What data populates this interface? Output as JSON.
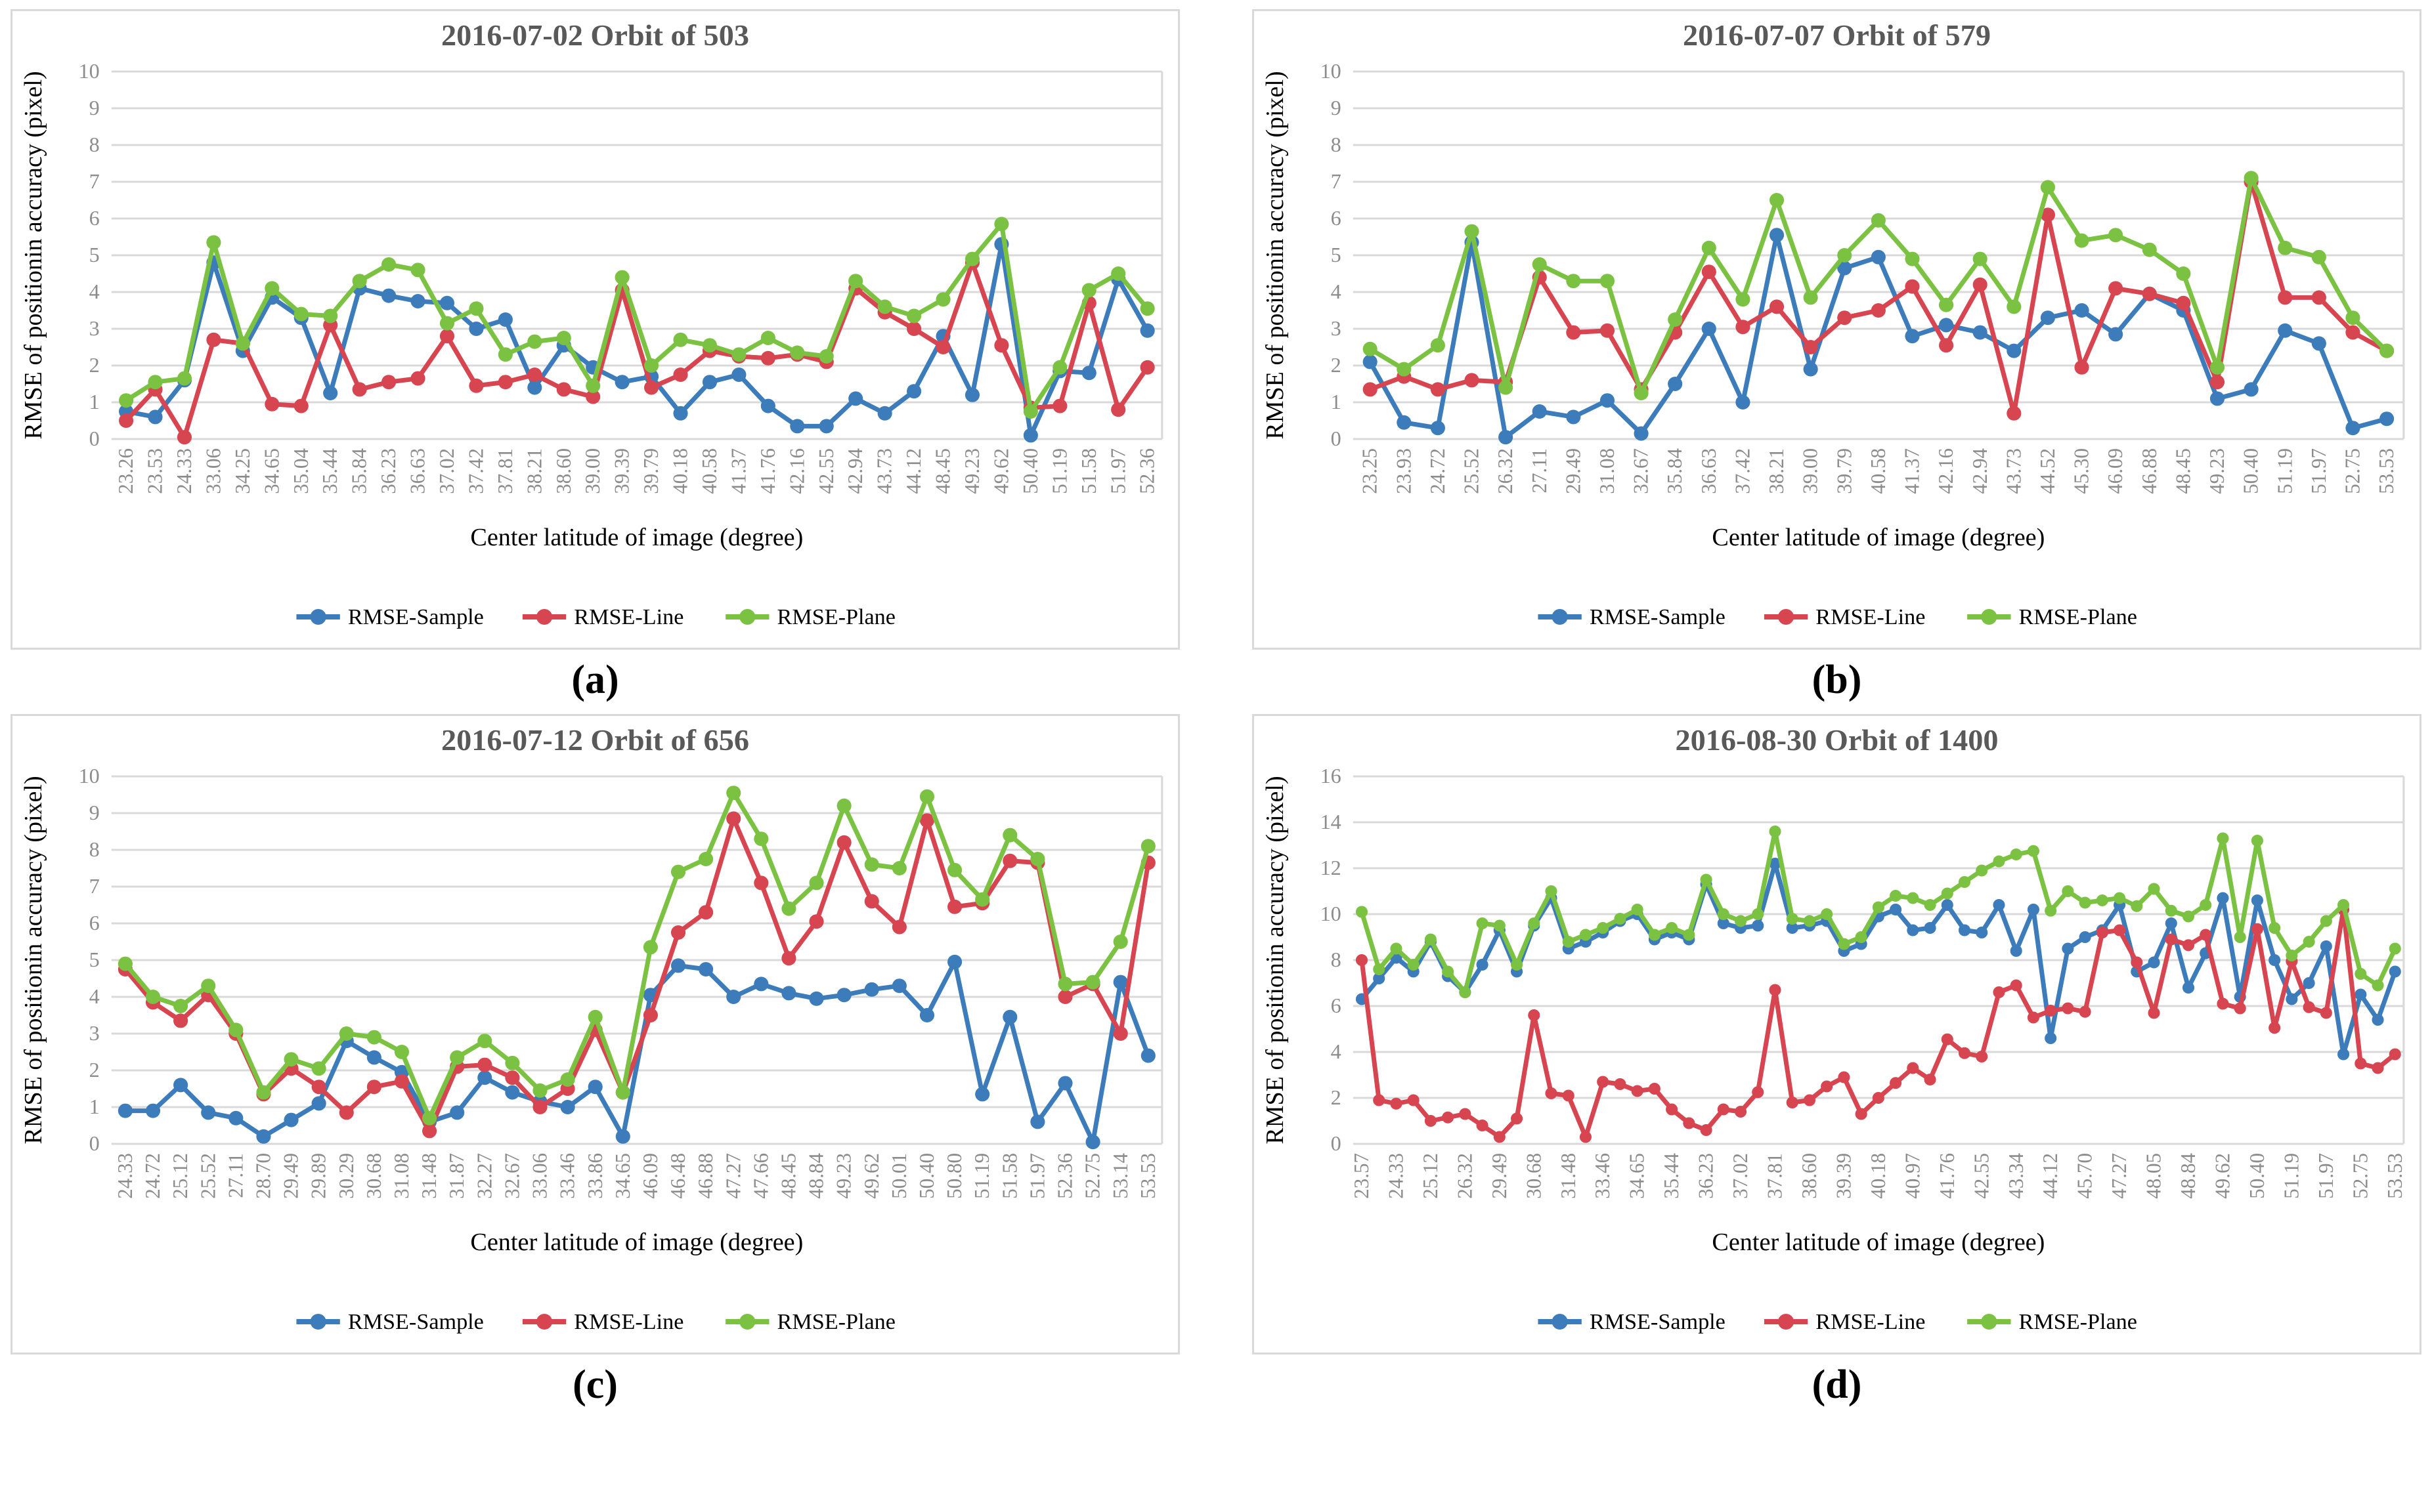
{
  "figure": {
    "captions": [
      "(a)",
      "(b)",
      "(c)",
      "(d)"
    ],
    "x_axis_title": "Center latitude of image (degree)",
    "y_axis_title": "RMSE of positionin accuracy (pixel)",
    "legend": [
      "RMSE-Sample",
      "RMSE-Line",
      "RMSE-Plane"
    ],
    "colors": {
      "sample": "#3C7CBB",
      "line": "#D64550",
      "plane": "#7CC242",
      "grid": "#D9D9D9",
      "plot_border": "#D9D9D9",
      "title_text": "#595959",
      "tick_text": "#8C8C8C",
      "axis_title_text": "#000000",
      "legend_text": "#000000"
    }
  },
  "chart_data": [
    {
      "type": "line",
      "title": "2016-07-02 Orbit of 503",
      "xlabel": "Center latitude of image (degree)",
      "ylabel": "RMSE of positionin accuracy (pixel)",
      "ylim": [
        0,
        10
      ],
      "yticks": [
        0,
        1,
        2,
        3,
        4,
        5,
        6,
        7,
        8,
        9,
        10
      ],
      "grid": true,
      "legend_position": "bottom",
      "label_stride": 1,
      "categories": [
        "23.26",
        "23.53",
        "24.33",
        "33.06",
        "34.25",
        "34.65",
        "35.04",
        "35.44",
        "35.84",
        "36.23",
        "36.63",
        "37.02",
        "37.42",
        "37.81",
        "38.21",
        "38.60",
        "39.00",
        "39.39",
        "39.79",
        "40.18",
        "40.58",
        "41.37",
        "41.76",
        "42.16",
        "42.55",
        "42.94",
        "43.73",
        "44.12",
        "48.45",
        "49.23",
        "49.62",
        "50.40",
        "51.19",
        "51.58",
        "51.97",
        "52.36"
      ],
      "series": [
        {
          "name": "RMSE-Sample",
          "color": "sample",
          "values": [
            0.75,
            0.6,
            1.6,
            4.8,
            2.4,
            3.85,
            3.3,
            1.25,
            4.1,
            3.9,
            3.75,
            3.7,
            3.0,
            3.25,
            1.4,
            2.55,
            1.95,
            1.55,
            1.7,
            0.7,
            1.55,
            1.75,
            0.9,
            0.35,
            0.35,
            1.1,
            0.7,
            1.3,
            2.8,
            1.2,
            5.3,
            0.1,
            1.85,
            1.8,
            4.35,
            2.95
          ]
        },
        {
          "name": "RMSE-Line",
          "color": "line",
          "values": [
            0.5,
            1.35,
            0.05,
            2.7,
            2.6,
            0.95,
            0.9,
            3.1,
            1.35,
            1.55,
            1.65,
            2.8,
            1.45,
            1.55,
            1.75,
            1.35,
            1.15,
            4.05,
            1.4,
            1.75,
            2.4,
            2.25,
            2.2,
            2.3,
            2.1,
            4.1,
            3.45,
            3.0,
            2.5,
            4.8,
            2.55,
            0.85,
            0.9,
            3.7,
            0.8,
            1.95
          ]
        },
        {
          "name": "RMSE-Plane",
          "color": "plane",
          "values": [
            1.05,
            1.55,
            1.65,
            5.35,
            2.6,
            4.1,
            3.4,
            3.35,
            4.3,
            4.75,
            4.6,
            3.15,
            3.55,
            2.3,
            2.65,
            2.75,
            1.45,
            4.4,
            2.0,
            2.7,
            2.55,
            2.3,
            2.75,
            2.35,
            2.25,
            4.3,
            3.6,
            3.35,
            3.8,
            4.9,
            5.85,
            0.75,
            1.95,
            4.05,
            4.5,
            3.55
          ]
        }
      ]
    },
    {
      "type": "line",
      "title": "2016-07-07 Orbit of 579",
      "xlabel": "Center latitude of image (degree)",
      "ylabel": "RMSE of positionin accuracy (pixel)",
      "ylim": [
        0,
        10
      ],
      "yticks": [
        0,
        1,
        2,
        3,
        4,
        5,
        6,
        7,
        8,
        9,
        10
      ],
      "grid": true,
      "legend_position": "bottom",
      "label_stride": 1,
      "categories": [
        "23.25",
        "23.93",
        "24.72",
        "25.52",
        "26.32",
        "27.11",
        "29.49",
        "31.08",
        "32.67",
        "35.84",
        "36.63",
        "37.42",
        "38.21",
        "39.00",
        "39.79",
        "40.58",
        "41.37",
        "42.16",
        "42.94",
        "43.73",
        "44.52",
        "45.30",
        "46.09",
        "46.88",
        "48.45",
        "49.23",
        "50.40",
        "51.19",
        "51.97",
        "52.75",
        "53.53"
      ],
      "series": [
        {
          "name": "RMSE-Sample",
          "color": "sample",
          "values": [
            2.1,
            0.45,
            0.3,
            5.35,
            0.05,
            0.75,
            0.6,
            1.05,
            0.15,
            1.5,
            3.0,
            1.0,
            5.55,
            1.9,
            4.65,
            4.95,
            2.8,
            3.1,
            2.9,
            2.4,
            3.3,
            3.5,
            2.85,
            3.95,
            3.5,
            1.1,
            1.35,
            2.95,
            2.6,
            0.3,
            0.55
          ]
        },
        {
          "name": "RMSE-Line",
          "color": "line",
          "values": [
            1.35,
            1.7,
            1.35,
            1.6,
            1.55,
            4.4,
            2.9,
            2.95,
            1.35,
            2.9,
            4.55,
            3.05,
            3.6,
            2.5,
            3.3,
            3.5,
            4.15,
            2.55,
            4.2,
            0.7,
            6.1,
            1.95,
            4.1,
            3.95,
            3.7,
            1.55,
            7.0,
            3.85,
            3.85,
            2.9,
            2.4
          ]
        },
        {
          "name": "RMSE-Plane",
          "color": "plane",
          "values": [
            2.45,
            1.9,
            2.55,
            5.65,
            1.4,
            4.75,
            4.3,
            4.3,
            1.25,
            3.25,
            5.2,
            3.8,
            6.5,
            3.85,
            5.0,
            5.95,
            4.9,
            3.65,
            4.9,
            3.6,
            6.85,
            5.4,
            5.55,
            5.15,
            4.5,
            1.95,
            7.1,
            5.2,
            4.95,
            3.3,
            2.4
          ]
        }
      ]
    },
    {
      "type": "line",
      "title": "2016-07-12 Orbit of 656",
      "xlabel": "Center latitude of image (degree)",
      "ylabel": "RMSE of positionin accuracy (pixel)",
      "ylim": [
        0,
        10
      ],
      "yticks": [
        0,
        1,
        2,
        3,
        4,
        5,
        6,
        7,
        8,
        9,
        10
      ],
      "grid": true,
      "legend_position": "bottom",
      "label_stride": 1,
      "categories": [
        "24.33",
        "24.72",
        "25.12",
        "25.52",
        "27.11",
        "28.70",
        "29.49",
        "29.89",
        "30.29",
        "30.68",
        "31.08",
        "31.48",
        "31.87",
        "32.27",
        "32.67",
        "33.06",
        "33.46",
        "33.86",
        "34.65",
        "46.09",
        "46.48",
        "46.88",
        "47.27",
        "47.66",
        "48.45",
        "48.84",
        "49.23",
        "49.62",
        "50.01",
        "50.40",
        "50.80",
        "51.19",
        "51.58",
        "51.97",
        "52.36",
        "52.75",
        "53.14",
        "53.53"
      ],
      "series": [
        {
          "name": "RMSE-Sample",
          "color": "sample",
          "values": [
            0.9,
            0.9,
            1.6,
            0.85,
            0.7,
            0.2,
            0.65,
            1.1,
            2.8,
            2.35,
            1.95,
            0.6,
            0.85,
            1.8,
            1.4,
            1.15,
            1.0,
            1.55,
            0.2,
            4.05,
            4.85,
            4.75,
            4.0,
            4.35,
            4.1,
            3.95,
            4.05,
            4.2,
            4.3,
            3.5,
            4.95,
            1.35,
            3.45,
            0.6,
            1.65,
            0.05,
            4.4,
            2.4
          ]
        },
        {
          "name": "RMSE-Line",
          "color": "line",
          "values": [
            4.75,
            3.85,
            3.35,
            4.05,
            3.0,
            1.35,
            2.05,
            1.55,
            0.85,
            1.55,
            1.7,
            0.35,
            2.1,
            2.15,
            1.8,
            1.0,
            1.5,
            3.1,
            1.4,
            3.5,
            5.75,
            6.3,
            8.85,
            7.1,
            5.05,
            6.05,
            8.2,
            6.6,
            5.9,
            8.8,
            6.45,
            6.55,
            7.7,
            7.65,
            4.0,
            4.35,
            3.0,
            7.65
          ]
        },
        {
          "name": "RMSE-Plane",
          "color": "plane",
          "values": [
            4.9,
            4.0,
            3.75,
            4.3,
            3.1,
            1.4,
            2.3,
            2.05,
            3.0,
            2.9,
            2.5,
            0.7,
            2.35,
            2.8,
            2.2,
            1.45,
            1.75,
            3.45,
            1.4,
            5.35,
            7.4,
            7.75,
            9.55,
            8.3,
            6.4,
            7.1,
            9.2,
            7.6,
            7.5,
            9.45,
            7.45,
            6.65,
            8.4,
            7.75,
            4.35,
            4.4,
            5.5,
            8.1
          ]
        }
      ]
    },
    {
      "type": "line",
      "title": "2016-08-30 Orbit of 1400",
      "xlabel": "Center latitude of image (degree)",
      "ylabel": "RMSE of positionin accuracy (pixel)",
      "ylim": [
        0,
        16
      ],
      "yticks": [
        0,
        2,
        4,
        6,
        8,
        10,
        12,
        14,
        16
      ],
      "grid": true,
      "legend_position": "bottom",
      "label_stride": 2,
      "categories": [
        "23.57",
        "24.33",
        "25.12",
        "26.32",
        "29.49",
        "30.68",
        "31.48",
        "33.46",
        "34.65",
        "35.44",
        "36.23",
        "37.02",
        "37.81",
        "38.60",
        "39.39",
        "40.18",
        "40.97",
        "41.76",
        "42.55",
        "43.34",
        "44.12",
        "45.70",
        "47.27",
        "48.05",
        "48.84",
        "49.62",
        "50.40",
        "51.19",
        "51.97",
        "52.75",
        "53.53"
      ],
      "series": [
        {
          "name": "RMSE-Sample",
          "color": "sample",
          "values": [
            6.3,
            7.2,
            8.1,
            7.5,
            8.8,
            7.3,
            6.6,
            7.8,
            9.3,
            7.5,
            9.5,
            10.7,
            8.5,
            8.8,
            9.2,
            9.7,
            10.0,
            8.9,
            9.2,
            8.9,
            11.3,
            9.6,
            9.4,
            9.5,
            12.2,
            9.4,
            9.5,
            9.7,
            8.4,
            8.7,
            9.9,
            10.2,
            9.3,
            9.4,
            10.4,
            9.3,
            9.2,
            10.4,
            8.4,
            10.2,
            4.6,
            8.5,
            9.0,
            9.3,
            10.4,
            7.5,
            7.9,
            9.6,
            6.8,
            8.3,
            10.7,
            6.4,
            10.6,
            8.0,
            6.3,
            7.0,
            8.6,
            3.9,
            6.5,
            5.4,
            7.5
          ]
        },
        {
          "name": "RMSE-Line",
          "color": "line",
          "values": [
            8.0,
            1.9,
            1.75,
            1.9,
            1.0,
            1.15,
            1.3,
            0.8,
            0.3,
            1.1,
            5.6,
            2.2,
            2.1,
            0.3,
            2.7,
            2.6,
            2.3,
            2.4,
            1.5,
            0.9,
            0.6,
            1.5,
            1.4,
            2.25,
            6.7,
            1.8,
            1.9,
            2.5,
            2.9,
            1.3,
            2.0,
            2.65,
            3.3,
            2.8,
            4.55,
            3.95,
            3.8,
            6.6,
            6.9,
            5.5,
            5.8,
            5.9,
            5.75,
            9.2,
            9.3,
            7.9,
            5.7,
            8.9,
            8.65,
            9.1,
            6.1,
            5.9,
            9.35,
            5.05,
            7.95,
            5.95,
            5.7,
            10.2,
            3.5,
            3.3,
            3.9
          ]
        },
        {
          "name": "RMSE-Plane",
          "color": "plane",
          "values": [
            10.1,
            7.6,
            8.5,
            7.8,
            8.9,
            7.5,
            6.6,
            9.6,
            9.5,
            7.8,
            9.6,
            11.0,
            8.8,
            9.1,
            9.4,
            9.8,
            10.2,
            9.1,
            9.4,
            9.1,
            11.5,
            10.0,
            9.7,
            10.0,
            13.6,
            9.8,
            9.7,
            10.0,
            8.7,
            9.0,
            10.3,
            10.8,
            10.7,
            10.4,
            10.9,
            11.4,
            11.9,
            12.3,
            12.6,
            12.75,
            10.15,
            11.0,
            10.5,
            10.6,
            10.7,
            10.35,
            11.1,
            10.15,
            9.9,
            10.4,
            13.3,
            9.0,
            13.2,
            9.4,
            8.2,
            8.8,
            9.7,
            10.4,
            7.4,
            6.9,
            8.5
          ]
        }
      ]
    }
  ]
}
